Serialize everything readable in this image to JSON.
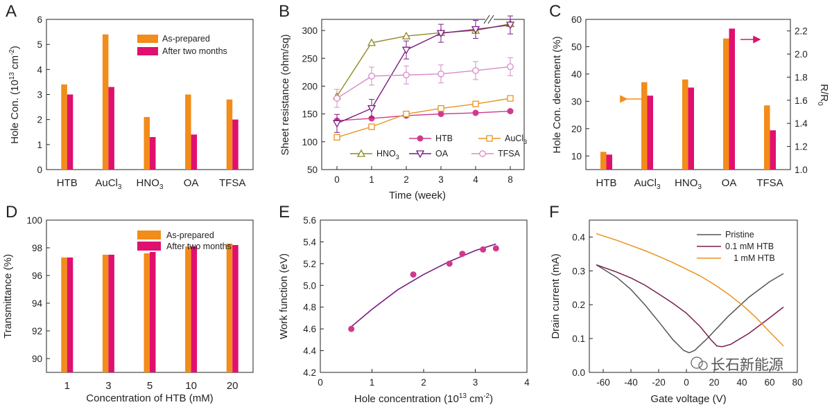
{
  "colors": {
    "orange": "#f28c1a",
    "magenta": "#e0106e",
    "olive": "#8f8a24",
    "purple": "#7a1a80",
    "lightpink": "#d98ac7",
    "pink": "#cf3a8c",
    "darkorange": "#e8931f",
    "gray": "#555555",
    "text": "#222222"
  },
  "watermark": "长石新能源",
  "chart_data": [
    {
      "panel": "A",
      "type": "bar",
      "categories": [
        "HTB",
        "AuCl3",
        "HNO3",
        "OA",
        "TFSA"
      ],
      "series": [
        {
          "name": "As-prepared",
          "values": [
            3.4,
            5.4,
            2.1,
            3.0,
            2.8
          ]
        },
        {
          "name": "After two months",
          "values": [
            3.0,
            3.3,
            1.3,
            1.4,
            2.0
          ]
        }
      ],
      "ylabel": "Hole Con. (10^13 cm^-2)",
      "ylim": [
        0,
        6
      ],
      "yticks": [
        0,
        1,
        2,
        3,
        4,
        5,
        6
      ],
      "legend_position": "top-right"
    },
    {
      "panel": "B",
      "type": "line",
      "x": [
        0,
        1,
        2,
        3,
        4,
        8
      ],
      "xticklabels": [
        "0",
        "1",
        "2",
        "3",
        "4",
        "8"
      ],
      "series": [
        {
          "name": "HTB",
          "marker": "filled-circle",
          "values": [
            138,
            142,
            147,
            150,
            152,
            155
          ]
        },
        {
          "name": "AuCl3",
          "marker": "open-square",
          "values": [
            108,
            127,
            150,
            160,
            168,
            178
          ]
        },
        {
          "name": "HNO3",
          "marker": "open-triangle-up",
          "values": [
            182,
            278,
            290,
            296,
            300,
            312
          ]
        },
        {
          "name": "OA",
          "marker": "open-triangle-down",
          "values": [
            133,
            160,
            265,
            295,
            302,
            310
          ]
        },
        {
          "name": "TFSA",
          "marker": "open-circle",
          "values": [
            178,
            218,
            220,
            222,
            228,
            235
          ]
        }
      ],
      "xlabel": "Time (week)",
      "ylabel": "Sheet resistance (ohm/sq)",
      "ylim": [
        50,
        320
      ],
      "yticks": [
        50,
        100,
        150,
        200,
        250,
        300
      ],
      "axis_break_between": [
        4,
        8
      ],
      "legend_position": "bottom-right"
    },
    {
      "panel": "C",
      "type": "bar",
      "categories": [
        "HTB",
        "AuCl3",
        "HNO3",
        "OA",
        "TFSA"
      ],
      "series": [
        {
          "name": "Hole Con. decrement",
          "axis": "left",
          "values": [
            11.5,
            37,
            38,
            53,
            28.5
          ]
        },
        {
          "name": "R/R0",
          "axis": "right",
          "values": [
            1.13,
            1.64,
            1.71,
            2.22,
            1.34
          ]
        }
      ],
      "ylabel": "Hole Con. decrement (%)",
      "ylim": [
        5,
        60
      ],
      "yticks": [
        10,
        20,
        30,
        40,
        50,
        60
      ],
      "y2label": "R/R0",
      "y2lim": [
        1.0,
        2.3
      ],
      "y2ticks": [
        1.0,
        1.2,
        1.4,
        1.6,
        1.8,
        2.0,
        2.2
      ]
    },
    {
      "panel": "D",
      "type": "bar",
      "categories": [
        "1",
        "3",
        "5",
        "10",
        "20"
      ],
      "series": [
        {
          "name": "As-prepared",
          "values": [
            97.3,
            97.5,
            97.6,
            98.1,
            98.3
          ]
        },
        {
          "name": "After two months",
          "values": [
            97.3,
            97.5,
            97.7,
            98.1,
            98.2
          ]
        }
      ],
      "xlabel": "Concentration of HTB (mM)",
      "ylabel": "Transmittance (%)",
      "ylim": [
        89,
        100
      ],
      "yticks": [
        90,
        92,
        94,
        96,
        98,
        100
      ],
      "legend_position": "top-right"
    },
    {
      "panel": "E",
      "type": "scatter",
      "points": [
        {
          "x": 0.6,
          "y": 4.6
        },
        {
          "x": 1.8,
          "y": 5.1
        },
        {
          "x": 2.5,
          "y": 5.2
        },
        {
          "x": 2.75,
          "y": 5.29
        },
        {
          "x": 3.15,
          "y": 5.33
        },
        {
          "x": 3.4,
          "y": 5.34
        }
      ],
      "fit": [
        {
          "x": 0.6,
          "y": 4.62
        },
        {
          "x": 1.0,
          "y": 4.78
        },
        {
          "x": 1.5,
          "y": 4.96
        },
        {
          "x": 2.0,
          "y": 5.1
        },
        {
          "x": 2.5,
          "y": 5.22
        },
        {
          "x": 3.0,
          "y": 5.32
        },
        {
          "x": 3.4,
          "y": 5.38
        }
      ],
      "xlabel": "Hole concentration (10^13 cm^-2)",
      "ylabel": "Work function (eV)",
      "xlim": [
        0,
        4
      ],
      "xticks": [
        0,
        1,
        2,
        3,
        4
      ],
      "ylim": [
        4.2,
        5.6
      ],
      "yticks": [
        4.2,
        4.4,
        4.6,
        4.8,
        5.0,
        5.2,
        5.4,
        5.6
      ]
    },
    {
      "panel": "F",
      "type": "line",
      "series": [
        {
          "name": "Pristine",
          "points": [
            [
              -65,
              0.318
            ],
            [
              -50,
              0.28
            ],
            [
              -40,
              0.245
            ],
            [
              -30,
              0.2
            ],
            [
              -20,
              0.15
            ],
            [
              -10,
              0.098
            ],
            [
              -2,
              0.065
            ],
            [
              2,
              0.058
            ],
            [
              6,
              0.065
            ],
            [
              15,
              0.1
            ],
            [
              30,
              0.165
            ],
            [
              45,
              0.222
            ],
            [
              60,
              0.268
            ],
            [
              70,
              0.292
            ]
          ]
        },
        {
          "name": "0.1 mM HTB",
          "points": [
            [
              -65,
              0.318
            ],
            [
              -50,
              0.296
            ],
            [
              -40,
              0.279
            ],
            [
              -30,
              0.258
            ],
            [
              -20,
              0.232
            ],
            [
              -10,
              0.205
            ],
            [
              0,
              0.175
            ],
            [
              10,
              0.135
            ],
            [
              18,
              0.095
            ],
            [
              22,
              0.078
            ],
            [
              26,
              0.076
            ],
            [
              32,
              0.083
            ],
            [
              45,
              0.115
            ],
            [
              58,
              0.155
            ],
            [
              70,
              0.193
            ]
          ]
        },
        {
          "name": "1 mM HTB",
          "points": [
            [
              -65,
              0.41
            ],
            [
              -50,
              0.39
            ],
            [
              -40,
              0.375
            ],
            [
              -30,
              0.36
            ],
            [
              -20,
              0.343
            ],
            [
              -10,
              0.325
            ],
            [
              0,
              0.305
            ],
            [
              10,
              0.285
            ],
            [
              20,
              0.26
            ],
            [
              30,
              0.232
            ],
            [
              40,
              0.2
            ],
            [
              50,
              0.163
            ],
            [
              60,
              0.12
            ],
            [
              70,
              0.078
            ]
          ]
        }
      ],
      "xlabel": "Gate voltage (V)",
      "ylabel": "Drain current (mA)",
      "xlim": [
        -70,
        80
      ],
      "xticks": [
        -60,
        -40,
        -20,
        0,
        20,
        40,
        60,
        80
      ],
      "ylim": [
        0,
        0.45
      ],
      "yticks": [
        0.0,
        0.1,
        0.2,
        0.3,
        0.4
      ],
      "legend_position": "top-right"
    }
  ]
}
